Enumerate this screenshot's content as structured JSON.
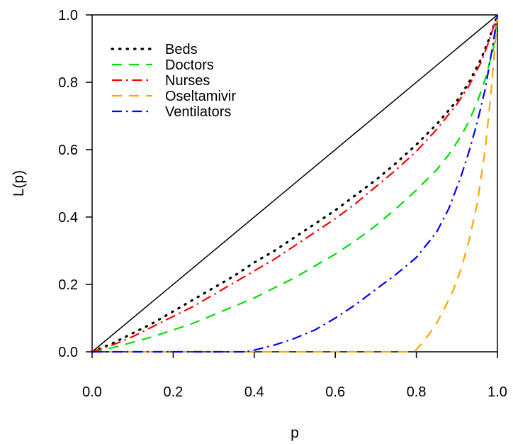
{
  "chart_data": {
    "type": "line",
    "xlabel": "p",
    "ylabel": "L(p)",
    "xlim": [
      0,
      1
    ],
    "ylim": [
      0,
      1
    ],
    "x_ticks": [
      "0.0",
      "0.2",
      "0.4",
      "0.6",
      "0.8",
      "1.0"
    ],
    "y_ticks": [
      "0.0",
      "0.2",
      "0.4",
      "0.6",
      "0.8",
      "1.0"
    ],
    "grid": false,
    "legend_position": "top-left",
    "reference_line": {
      "from": [
        0,
        0
      ],
      "to": [
        1,
        1
      ],
      "color": "#000000"
    },
    "series": [
      {
        "name": "Beds",
        "color": "#000000",
        "dash": "dotted",
        "x": [
          0,
          0.05,
          0.1,
          0.15,
          0.2,
          0.25,
          0.3,
          0.35,
          0.4,
          0.45,
          0.5,
          0.55,
          0.6,
          0.65,
          0.7,
          0.75,
          0.8,
          0.85,
          0.9,
          0.93,
          0.96,
          0.98,
          1.0
        ],
        "y": [
          0,
          0.025,
          0.055,
          0.085,
          0.12,
          0.155,
          0.19,
          0.225,
          0.265,
          0.3,
          0.34,
          0.38,
          0.42,
          0.465,
          0.51,
          0.56,
          0.615,
          0.675,
          0.745,
          0.8,
          0.87,
          0.93,
          1.0
        ]
      },
      {
        "name": "Doctors",
        "color": "#00e000",
        "dash": "dashed",
        "x": [
          0,
          0.05,
          0.1,
          0.15,
          0.2,
          0.25,
          0.3,
          0.35,
          0.4,
          0.45,
          0.5,
          0.55,
          0.6,
          0.65,
          0.7,
          0.75,
          0.8,
          0.85,
          0.88,
          0.91,
          0.93,
          0.95,
          0.97,
          0.99,
          1.0
        ],
        "y": [
          0,
          0.012,
          0.028,
          0.045,
          0.065,
          0.085,
          0.11,
          0.135,
          0.16,
          0.19,
          0.22,
          0.255,
          0.29,
          0.33,
          0.375,
          0.425,
          0.48,
          0.54,
          0.585,
          0.64,
          0.685,
          0.74,
          0.81,
          0.9,
          1.0
        ]
      },
      {
        "name": "Nurses",
        "color": "#ff0000",
        "dash": "dashdot",
        "x": [
          0,
          0.05,
          0.1,
          0.15,
          0.2,
          0.25,
          0.3,
          0.35,
          0.4,
          0.45,
          0.5,
          0.55,
          0.6,
          0.65,
          0.7,
          0.75,
          0.8,
          0.85,
          0.9,
          0.93,
          0.96,
          0.98,
          1.0
        ],
        "y": [
          0,
          0.02,
          0.045,
          0.075,
          0.105,
          0.135,
          0.17,
          0.205,
          0.24,
          0.275,
          0.315,
          0.355,
          0.395,
          0.44,
          0.49,
          0.54,
          0.595,
          0.66,
          0.735,
          0.79,
          0.86,
          0.925,
          1.0
        ]
      },
      {
        "name": "Oseltamivir",
        "color": "#ffa500",
        "dash": "dashed",
        "x": [
          0,
          0.2,
          0.4,
          0.6,
          0.795,
          0.81,
          0.83,
          0.85,
          0.87,
          0.89,
          0.91,
          0.93,
          0.95,
          0.97,
          0.985,
          1.0
        ],
        "y": [
          0,
          0,
          0,
          0,
          0,
          0.02,
          0.05,
          0.085,
          0.13,
          0.18,
          0.245,
          0.33,
          0.44,
          0.6,
          0.78,
          1.0
        ]
      },
      {
        "name": "Ventilators",
        "color": "#0000ff",
        "dash": "dashdot",
        "x": [
          0,
          0.1,
          0.2,
          0.3,
          0.38,
          0.4,
          0.45,
          0.5,
          0.55,
          0.6,
          0.65,
          0.7,
          0.75,
          0.8,
          0.85,
          0.88,
          0.91,
          0.93,
          0.95,
          0.97,
          0.99,
          1.0
        ],
        "y": [
          0,
          0,
          0,
          0,
          0,
          0.005,
          0.02,
          0.04,
          0.065,
          0.1,
          0.14,
          0.185,
          0.23,
          0.28,
          0.355,
          0.425,
          0.52,
          0.595,
          0.68,
          0.78,
          0.92,
          1.0
        ]
      }
    ]
  }
}
